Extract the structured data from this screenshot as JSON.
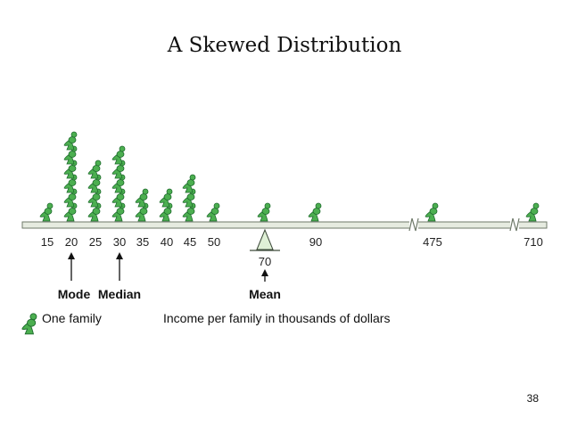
{
  "title": "A Skewed Distribution",
  "page_number": "38",
  "axis": {
    "ticks": [
      {
        "label": "15",
        "families": 1
      },
      {
        "label": "20",
        "families": 6
      },
      {
        "label": "25",
        "families": 4
      },
      {
        "label": "30",
        "families": 5
      },
      {
        "label": "35",
        "families": 2
      },
      {
        "label": "40",
        "families": 2
      },
      {
        "label": "45",
        "families": 3
      },
      {
        "label": "50",
        "families": 1
      },
      {
        "label": "70",
        "families": 1
      },
      {
        "label": "90",
        "families": 1
      },
      {
        "label": "475",
        "families": 1
      },
      {
        "label": "710",
        "families": 1
      }
    ]
  },
  "markers": {
    "mode_label": "Mode",
    "median_label": "Median",
    "mean_label": "Mean",
    "mean_value": "70"
  },
  "legend": {
    "family_label": "One family",
    "axis_caption": "Income per family in thousands of dollars"
  },
  "colors": {
    "figure": "#4caf50",
    "figure_outline": "#1f6b2e",
    "axis_bar": "#e6ebe0",
    "axis_outline": "#6f7a6a",
    "fulcrum": "#dff0d6"
  }
}
